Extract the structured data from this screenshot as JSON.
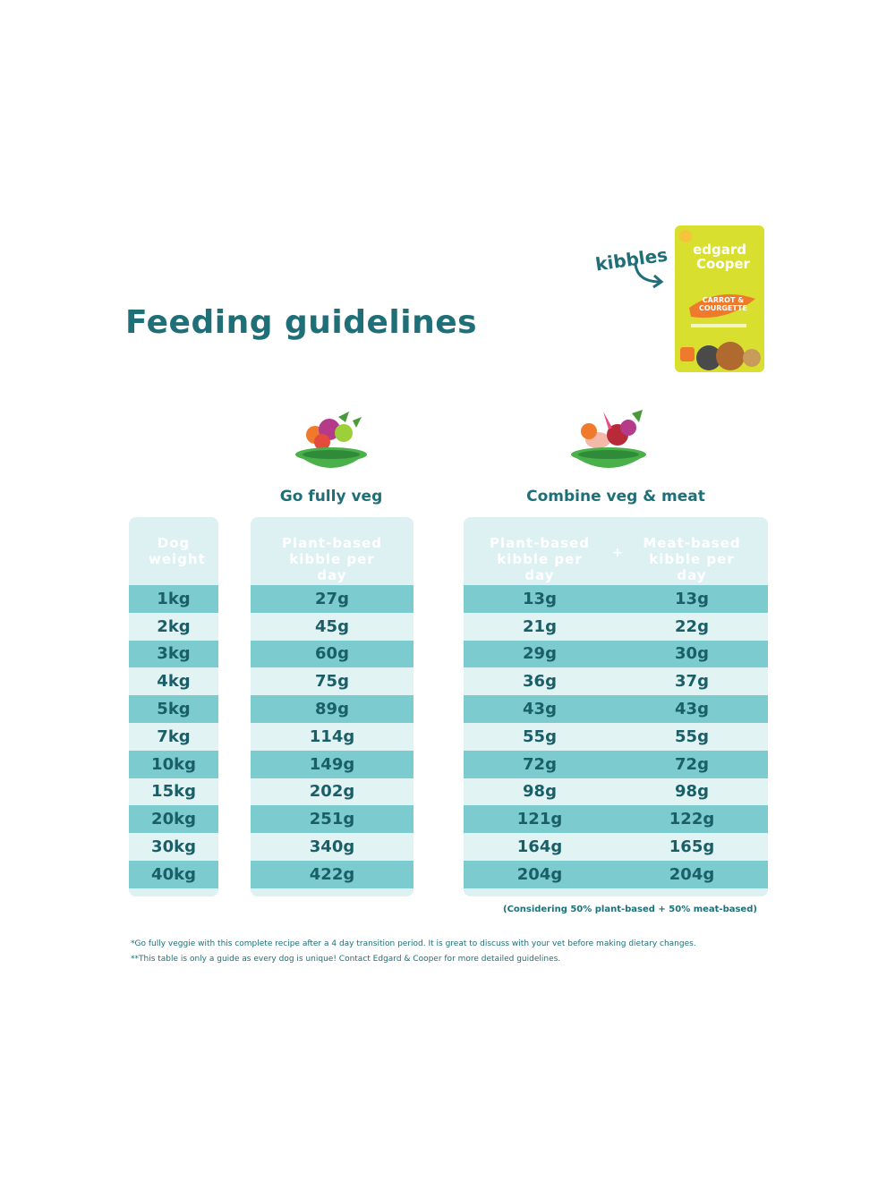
{
  "title": "Feeding guidelines",
  "kibbles_label": "kibbles",
  "product": {
    "brand_line1": "edgard",
    "brand_line2": "Cooper",
    "flavor_line1": "CARROT &",
    "flavor_line2": "COURGETTE"
  },
  "columns": {
    "veg_title": "Go fully veg",
    "combo_title": "Combine veg & meat",
    "weight_header": "Dog weight",
    "veg_header": "Plant-based kibble per day",
    "combo_plant_header": "Plant-based kibble per day",
    "combo_meat_header": "Meat-based kibble per day",
    "plus": "+"
  },
  "rows": [
    {
      "weight": "1kg",
      "veg": "27g",
      "plant": "13g",
      "meat": "13g"
    },
    {
      "weight": "2kg",
      "veg": "45g",
      "plant": "21g",
      "meat": "22g"
    },
    {
      "weight": "3kg",
      "veg": "60g",
      "plant": "29g",
      "meat": "30g"
    },
    {
      "weight": "4kg",
      "veg": "75g",
      "plant": "36g",
      "meat": "37g"
    },
    {
      "weight": "5kg",
      "veg": "89g",
      "plant": "43g",
      "meat": "43g"
    },
    {
      "weight": "7kg",
      "veg": "114g",
      "plant": "55g",
      "meat": "55g"
    },
    {
      "weight": "10kg",
      "veg": "149g",
      "plant": "72g",
      "meat": "72g"
    },
    {
      "weight": "15kg",
      "veg": "202g",
      "plant": "98g",
      "meat": "98g"
    },
    {
      "weight": "20kg",
      "veg": "251g",
      "plant": "121g",
      "meat": "122g"
    },
    {
      "weight": "30kg",
      "veg": "340g",
      "plant": "164g",
      "meat": "165g"
    },
    {
      "weight": "40kg",
      "veg": "422g",
      "plant": "204g",
      "meat": "204g"
    }
  ],
  "combo_note": "(Considering 50% plant-based + 50% meat-based)",
  "footnotes": [
    "*Go fully veggie with this complete recipe after a 4 day transition period. It is great to discuss with your vet before making dietary changes.",
    "**This table is only a guide as every dog is unique! Contact Edgard & Cooper for more detailed guidelines."
  ],
  "colors": {
    "teal_dark": "#1f6f78",
    "row_dark": "#7ccbce",
    "row_light": "#e2f3f4",
    "panel": "#ddf0f2",
    "bag": "#d8df2e",
    "carrot": "#f07a2c"
  }
}
